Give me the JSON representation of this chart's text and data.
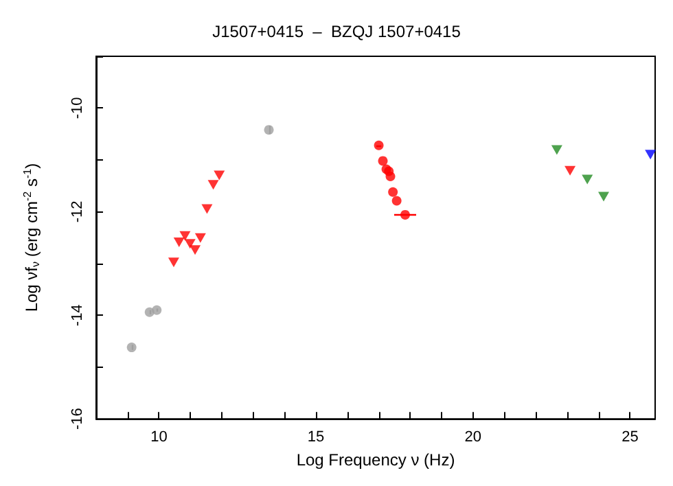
{
  "chart_data": {
    "type": "scatter",
    "title": "J1507+0415  –  BZQJ 1507+0415",
    "xlabel": "Log Frequency ν (Hz)",
    "ylabel": "Log νf$_{ν}$ (erg cm$^{-2}$ s$^{-1}$)",
    "xlim": [
      8,
      25.8
    ],
    "ylim": [
      -16,
      -9
    ],
    "xticks": [
      {
        "value": 8,
        "label": null
      },
      {
        "value": 9,
        "label": null
      },
      10,
      {
        "value": 11,
        "label": null
      },
      {
        "value": 12,
        "label": null
      },
      {
        "value": 13,
        "label": null
      },
      {
        "value": 14,
        "label": null
      },
      15,
      {
        "value": 16,
        "label": null
      },
      {
        "value": 17,
        "label": null
      },
      {
        "value": 18,
        "label": null
      },
      {
        "value": 19,
        "label": null
      },
      20,
      {
        "value": 21,
        "label": null
      },
      {
        "value": 22,
        "label": null
      },
      {
        "value": 23,
        "label": null
      },
      {
        "value": 24,
        "label": null
      },
      25
    ],
    "yticks": [
      -16,
      {
        "value": -15,
        "label": null
      },
      -14,
      {
        "value": -13,
        "label": null
      },
      -12,
      {
        "value": -11,
        "label": null
      },
      -10,
      {
        "value": -9,
        "label": null
      }
    ],
    "grid": false,
    "series": [
      {
        "color": "#a0a0a0",
        "marker": "circle",
        "x": [
          9.13,
          9.7,
          9.93,
          13.5
        ],
        "values": [
          -14.62,
          -13.94,
          -13.9,
          -10.42
        ],
        "errors": [
          0.05,
          0.04,
          0.03,
          0.08
        ]
      },
      {
        "color": "#ff0000",
        "marker": "triangle",
        "x": [
          10.47,
          10.64,
          10.83,
          10.99,
          11.15,
          11.32,
          11.53,
          11.73,
          11.92
        ],
        "values": [
          -12.98,
          -12.59,
          -12.47,
          -12.62,
          -12.74,
          -12.51,
          -11.95,
          -11.48,
          -11.3
        ]
      },
      {
        "color": "#ff0000",
        "marker": "circle",
        "x": [
          17.0,
          17.13,
          17.24,
          17.32,
          17.37,
          17.45,
          17.57,
          17.84
        ],
        "values": [
          -10.72,
          -11.02,
          -11.18,
          -11.22,
          -11.32,
          -11.62,
          -11.79,
          -12.06
        ],
        "xerrors": [
          0.08,
          null,
          null,
          null,
          null,
          null,
          null,
          0.35
        ]
      },
      {
        "color": "#228b22",
        "marker": "triangle",
        "x": [
          22.67,
          23.64,
          24.16
        ],
        "values": [
          -10.81,
          -11.38,
          -11.71
        ]
      },
      {
        "color": "#ff0000",
        "marker": "triangle",
        "x": [
          23.09
        ],
        "values": [
          -11.21
        ]
      },
      {
        "color": "#0000ff",
        "marker": "triangle",
        "x": [
          25.65
        ],
        "values": [
          -10.9
        ]
      }
    ]
  }
}
